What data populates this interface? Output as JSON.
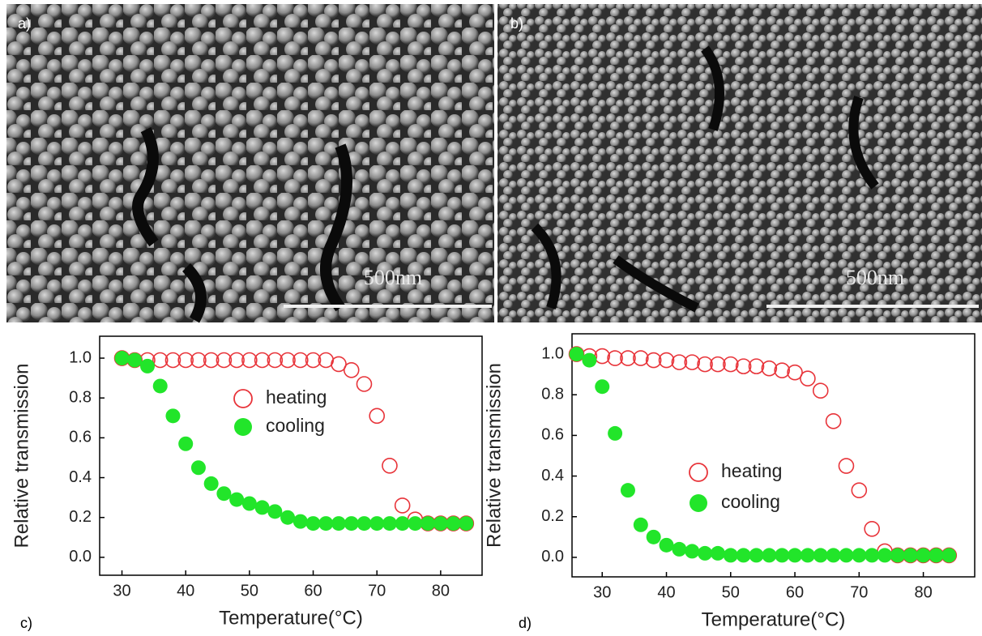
{
  "images": [
    {
      "label": "a)",
      "scale_bar": "500nm"
    },
    {
      "label": "b)",
      "scale_bar": "500nm"
    }
  ],
  "chart_data": [
    {
      "type": "scatter",
      "panel_label": "c)",
      "xlabel": "Temperature(°C)",
      "ylabel": "Relative transmission",
      "x": [
        30,
        32,
        34,
        36,
        38,
        40,
        42,
        44,
        46,
        48,
        50,
        52,
        54,
        56,
        58,
        60,
        62,
        64,
        66,
        68,
        70,
        72,
        74,
        76,
        78,
        80,
        82,
        84
      ],
      "series": [
        {
          "name": "heating",
          "color": "#e8343a",
          "filled": false,
          "values": [
            1.0,
            0.99,
            0.99,
            0.99,
            0.99,
            0.99,
            0.99,
            0.99,
            0.99,
            0.99,
            0.99,
            0.99,
            0.99,
            0.99,
            0.99,
            0.99,
            0.99,
            0.97,
            0.94,
            0.87,
            0.71,
            0.46,
            0.26,
            0.19,
            0.17,
            0.17,
            0.17,
            0.17
          ]
        },
        {
          "name": "cooling",
          "color": "#22e52a",
          "filled": true,
          "values": [
            1.0,
            0.99,
            0.96,
            0.86,
            0.71,
            0.57,
            0.45,
            0.37,
            0.32,
            0.29,
            0.27,
            0.25,
            0.23,
            0.2,
            0.18,
            0.17,
            0.17,
            0.17,
            0.17,
            0.17,
            0.17,
            0.17,
            0.17,
            0.17,
            0.17,
            0.17,
            0.17,
            0.17
          ]
        }
      ],
      "xlim": [
        26.5,
        86.5
      ],
      "ylim": [
        -0.09,
        1.11
      ],
      "xticks": [
        30,
        40,
        50,
        60,
        70,
        80
      ],
      "yticks": [
        {
          "value": 0,
          "label": "0.0"
        },
        0.2,
        0.4,
        0.6,
        0.8,
        {
          "value": 1,
          "label": "1.0"
        }
      ]
    },
    {
      "type": "scatter",
      "panel_label": "d)",
      "xlabel": "Temperature(°C)",
      "ylabel": "Relative transmission",
      "x": [
        26,
        28,
        30,
        32,
        34,
        36,
        38,
        40,
        42,
        44,
        46,
        48,
        50,
        52,
        54,
        56,
        58,
        60,
        62,
        64,
        66,
        68,
        70,
        72,
        74,
        76,
        78,
        80,
        82,
        84
      ],
      "series": [
        {
          "name": "heating",
          "color": "#e8343a",
          "filled": false,
          "values": [
            1.0,
            0.99,
            0.99,
            0.98,
            0.98,
            0.98,
            0.97,
            0.97,
            0.96,
            0.96,
            0.95,
            0.95,
            0.95,
            0.94,
            0.94,
            0.93,
            0.92,
            0.91,
            0.88,
            0.82,
            0.67,
            0.45,
            0.33,
            0.14,
            0.03,
            0.01,
            0.01,
            0.01,
            0.01,
            0.01
          ]
        },
        {
          "name": "cooling",
          "color": "#22e52a",
          "filled": true,
          "values": [
            1.0,
            0.97,
            0.84,
            0.61,
            0.33,
            0.16,
            0.1,
            0.06,
            0.04,
            0.03,
            0.02,
            0.02,
            0.01,
            0.01,
            0.01,
            0.01,
            0.01,
            0.01,
            0.01,
            0.01,
            0.01,
            0.01,
            0.01,
            0.01,
            0.01,
            0.01,
            0.01,
            0.01,
            0.01,
            0.01
          ]
        }
      ],
      "xlim": [
        25.3,
        88
      ],
      "ylim": [
        -0.096,
        1.1
      ],
      "xticks": [
        30,
        40,
        50,
        60,
        70,
        80
      ],
      "yticks": [
        {
          "value": 0,
          "label": "0.0"
        },
        0.2,
        0.4,
        0.6,
        0.8,
        {
          "value": 1,
          "label": "1.0"
        }
      ]
    }
  ]
}
